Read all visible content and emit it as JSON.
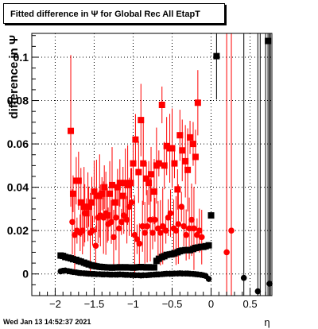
{
  "title": "Fitted difference in Ψ for Global Rec All EtapT",
  "timestamp": "Wed Jan 13 14:52:37 2021",
  "chart_data": {
    "type": "scatter",
    "title": "Fitted difference in Ψ for Global Rec All EtapT",
    "xlabel": "η",
    "ylabel": "difference in Ψ",
    "xlim": [
      -2.3,
      0.78
    ],
    "ylim": [
      -0.01,
      0.111
    ],
    "xticks": [
      -2,
      -1.5,
      -1,
      -0.5,
      0,
      0.5
    ],
    "xtick_labels": [
      "−2",
      "−1.5",
      "−1",
      "−0.5",
      "0",
      "0.5"
    ],
    "yticks": [
      0,
      0.02,
      0.04,
      0.06,
      0.08,
      0.1
    ],
    "ytick_labels": [
      "0",
      "0.02",
      "0.04",
      "0.06",
      "0.08",
      "0.1"
    ],
    "grid": true,
    "series": [
      {
        "marker": "square",
        "color": "#ff0000",
        "x": [
          -1.8,
          -1.77,
          -1.73,
          -1.7,
          -1.67,
          -1.63,
          -1.6,
          -1.57,
          -1.53,
          -1.5,
          -1.47,
          -1.43,
          -1.4,
          -1.37,
          -1.33,
          -1.3,
          -1.27,
          -1.23,
          -1.2,
          -1.17,
          -1.13,
          -1.1,
          -1.07,
          -1.03,
          -1.0,
          -0.97,
          -0.93,
          -0.9,
          -0.87,
          -0.83,
          -0.8,
          -0.77,
          -0.73,
          -0.7,
          -0.67,
          -0.63,
          -0.6,
          -0.57,
          -0.53,
          -0.5,
          -0.47,
          -0.43,
          -0.4,
          -0.37,
          -0.33,
          -0.3,
          -0.27,
          -0.23,
          -0.2,
          -0.17
        ],
        "y": [
          0.066,
          0.037,
          0.043,
          0.043,
          0.033,
          0.031,
          0.028,
          0.031,
          0.033,
          0.038,
          0.036,
          0.036,
          0.037,
          0.04,
          0.027,
          0.037,
          0.041,
          0.033,
          0.04,
          0.042,
          0.036,
          0.042,
          0.041,
          0.042,
          0.051,
          0.062,
          0.047,
          0.071,
          0.051,
          0.044,
          0.042,
          0.046,
          0.038,
          0.05,
          0.051,
          0.078,
          0.05,
          0.059,
          0.058,
          0.058,
          0.051,
          0.039,
          0.064,
          0.057,
          0.052,
          0.048,
          0.063,
          0.06,
          0.054,
          0.079
        ]
      },
      {
        "marker": "circle",
        "color": "#ff0000",
        "x": [
          -1.78,
          -1.75,
          -1.72,
          -1.68,
          -1.65,
          -1.62,
          -1.58,
          -1.55,
          -1.52,
          -1.48,
          -1.45,
          -1.42,
          -1.38,
          -1.35,
          -1.32,
          -1.28,
          -1.25,
          -1.22,
          -1.18,
          -1.15,
          -1.12,
          -1.08,
          -1.05,
          -1.02,
          -0.98,
          -0.95,
          -0.92,
          -0.88,
          -0.85,
          -0.82,
          -0.78,
          -0.75,
          -0.72,
          -0.68,
          -0.65,
          -0.62,
          -0.58,
          -0.55,
          -0.52,
          -0.48,
          -0.45,
          -0.42,
          -0.38,
          -0.35,
          -0.32,
          -0.28,
          -0.25,
          -0.22,
          -0.18,
          -0.15,
          -0.12,
          0.2,
          0.26
        ],
        "y": [
          0.024,
          0.018,
          0.02,
          0.019,
          0.02,
          0.028,
          0.031,
          0.019,
          0.02,
          0.013,
          0.026,
          0.027,
          0.026,
          0.028,
          0.023,
          0.024,
          0.017,
          0.026,
          0.021,
          0.024,
          0.027,
          0.025,
          0.031,
          0.033,
          0.018,
          0.016,
          0.014,
          0.022,
          0.019,
          0.022,
          0.025,
          0.019,
          0.025,
          0.021,
          0.019,
          0.022,
          0.02,
          0.026,
          0.028,
          0.021,
          0.02,
          0.023,
          0.031,
          0.022,
          0.018,
          0.021,
          0.025,
          0.021,
          0.018,
          0.02,
          0.017,
          0.01,
          0.02
        ]
      },
      {
        "marker": "square",
        "color": "#000000",
        "x": [
          -1.93,
          -1.9,
          -1.87,
          -1.83,
          -1.8,
          -1.77,
          -1.73,
          -1.7,
          -1.67,
          -1.63,
          -1.6,
          -1.57,
          -1.53,
          -1.5,
          -1.47,
          -1.43,
          -1.4,
          -1.37,
          -1.33,
          -1.3,
          -1.27,
          -1.23,
          -1.2,
          -1.17,
          -1.13,
          -1.1,
          -1.07,
          -1.03,
          -1.0,
          -0.97,
          -0.93,
          -0.9,
          -0.87,
          -0.83,
          -0.8,
          -0.77,
          -0.73,
          -0.7,
          -0.67,
          -0.63,
          -0.6,
          -0.57,
          -0.53,
          -0.5,
          -0.47,
          -0.43,
          -0.4,
          -0.37,
          -0.33,
          -0.3,
          -0.27,
          -0.23,
          -0.2,
          -0.17,
          -0.13,
          -0.1,
          -0.07,
          -0.03,
          0.0,
          0.07
        ],
        "y": [
          0.0085,
          0.0083,
          0.0078,
          0.0075,
          0.0072,
          0.0068,
          0.0065,
          0.006,
          0.0057,
          0.0052,
          0.0048,
          0.0044,
          0.004,
          0.0037,
          0.0035,
          0.0033,
          0.0032,
          0.0031,
          0.003,
          0.003,
          0.0029,
          0.003,
          0.003,
          0.0031,
          0.003,
          0.0031,
          0.003,
          0.003,
          0.0029,
          0.003,
          0.0031,
          0.0032,
          0.0031,
          0.003,
          0.0031,
          0.003,
          0.003,
          0.006,
          0.007,
          0.0078,
          0.0082,
          0.0088,
          0.009,
          0.0092,
          0.0095,
          0.01,
          0.0105,
          0.0108,
          0.011,
          0.011,
          0.011,
          0.0115,
          0.012,
          0.0122,
          0.0125,
          0.0125,
          0.0128,
          0.0132,
          0.027,
          0.1005
        ]
      },
      {
        "marker": "circle",
        "color": "#000000",
        "x": [
          -1.93,
          -1.9,
          -1.87,
          -1.83,
          -1.8,
          -1.77,
          -1.73,
          -1.7,
          -1.67,
          -1.63,
          -1.6,
          -1.57,
          -1.53,
          -1.5,
          -1.47,
          -1.43,
          -1.4,
          -1.37,
          -1.33,
          -1.3,
          -1.27,
          -1.23,
          -1.2,
          -1.17,
          -1.13,
          -1.1,
          -1.07,
          -1.03,
          -1.0,
          -0.97,
          -0.93,
          -0.9,
          -0.87,
          -0.83,
          -0.8,
          -0.77,
          -0.73,
          -0.7,
          -0.67,
          -0.63,
          -0.6,
          -0.57,
          -0.53,
          -0.5,
          -0.47,
          -0.43,
          -0.4,
          -0.37,
          -0.33,
          -0.3,
          -0.27,
          -0.23,
          -0.2,
          -0.17,
          -0.13,
          -0.1,
          -0.07,
          -0.03,
          0.42,
          0.6,
          0.75
        ],
        "y": [
          0.0012,
          0.0015,
          0.0016,
          0.0013,
          0.0011,
          0.0009,
          0.0007,
          0.0005,
          0.0004,
          0.0003,
          0.0002,
          0.0001,
          0.0,
          0.0,
          -0.0001,
          -0.0001,
          -0.0002,
          -0.0002,
          -0.0002,
          -0.0003,
          -0.0003,
          -0.0003,
          -0.0003,
          -0.0002,
          -0.0003,
          -0.0004,
          -0.0004,
          -0.0005,
          -0.0005,
          -0.0006,
          -0.0006,
          -0.0007,
          -0.0006,
          -0.0006,
          -0.0005,
          -0.0004,
          -0.0003,
          -0.0002,
          -0.0002,
          -0.0001,
          0.0,
          0.0001,
          0.0001,
          0.0001,
          0.0002,
          0.0002,
          0.0003,
          0.0002,
          0.0002,
          0.0002,
          0.0001,
          0.0,
          -0.0001,
          -0.0002,
          -0.0004,
          -0.0006,
          -0.0009,
          -0.0023,
          -0.0018,
          -0.008,
          -0.0045
        ]
      }
    ],
    "outliers": [
      {
        "marker": "square",
        "color": "#000000",
        "x": 0.73,
        "y": 0.1075
      }
    ]
  }
}
